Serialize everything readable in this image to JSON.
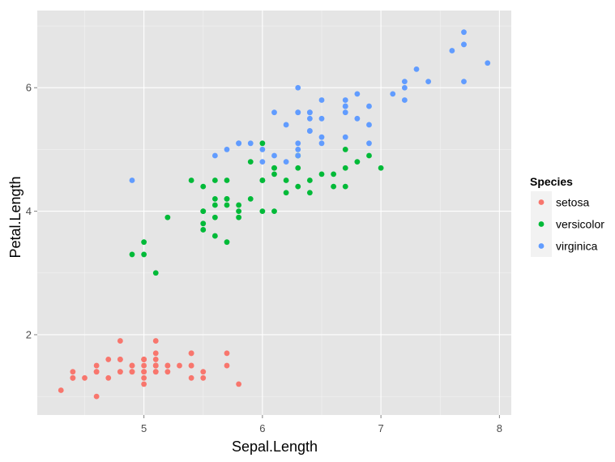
{
  "chart_data": {
    "type": "scatter",
    "xlabel": "Sepal.Length",
    "ylabel": "Petal.Length",
    "xlim": [
      4.1,
      8.1
    ],
    "ylim": [
      0.7,
      7.25
    ],
    "x_ticks": [
      5,
      6,
      7,
      8
    ],
    "x_tick_labels": [
      "5",
      "6",
      "7",
      "8"
    ],
    "y_ticks": [
      2,
      4,
      6
    ],
    "y_tick_labels": [
      "2",
      "4",
      "6"
    ],
    "grid": true,
    "background": "#e5e5e5",
    "legend": {
      "title": "Species",
      "position": "right"
    },
    "series": [
      {
        "name": "setosa",
        "color": "#f8766d",
        "points": [
          [
            5.1,
            1.4
          ],
          [
            4.9,
            1.4
          ],
          [
            4.7,
            1.3
          ],
          [
            4.6,
            1.5
          ],
          [
            5.0,
            1.4
          ],
          [
            5.4,
            1.7
          ],
          [
            4.6,
            1.4
          ],
          [
            5.0,
            1.5
          ],
          [
            4.4,
            1.4
          ],
          [
            4.9,
            1.5
          ],
          [
            5.4,
            1.5
          ],
          [
            4.8,
            1.6
          ],
          [
            4.8,
            1.4
          ],
          [
            4.3,
            1.1
          ],
          [
            5.8,
            1.2
          ],
          [
            5.7,
            1.5
          ],
          [
            5.4,
            1.3
          ],
          [
            5.1,
            1.4
          ],
          [
            5.7,
            1.7
          ],
          [
            5.1,
            1.5
          ],
          [
            5.4,
            1.7
          ],
          [
            5.1,
            1.5
          ],
          [
            4.6,
            1.0
          ],
          [
            5.1,
            1.7
          ],
          [
            4.8,
            1.9
          ],
          [
            5.0,
            1.6
          ],
          [
            5.0,
            1.6
          ],
          [
            5.2,
            1.5
          ],
          [
            5.2,
            1.4
          ],
          [
            4.7,
            1.6
          ],
          [
            4.8,
            1.6
          ],
          [
            5.4,
            1.5
          ],
          [
            5.2,
            1.5
          ],
          [
            5.5,
            1.4
          ],
          [
            4.9,
            1.5
          ],
          [
            5.0,
            1.2
          ],
          [
            5.5,
            1.3
          ],
          [
            4.9,
            1.4
          ],
          [
            4.4,
            1.3
          ],
          [
            5.1,
            1.5
          ],
          [
            5.0,
            1.3
          ],
          [
            4.5,
            1.3
          ],
          [
            4.4,
            1.3
          ],
          [
            5.0,
            1.6
          ],
          [
            5.1,
            1.9
          ],
          [
            4.8,
            1.4
          ],
          [
            5.1,
            1.6
          ],
          [
            4.6,
            1.4
          ],
          [
            5.3,
            1.5
          ],
          [
            5.0,
            1.4
          ]
        ]
      },
      {
        "name": "versicolor",
        "color": "#00ba38",
        "points": [
          [
            7.0,
            4.7
          ],
          [
            6.4,
            4.5
          ],
          [
            6.9,
            4.9
          ],
          [
            5.5,
            4.0
          ],
          [
            6.5,
            4.6
          ],
          [
            5.7,
            4.5
          ],
          [
            6.3,
            4.7
          ],
          [
            4.9,
            3.3
          ],
          [
            6.6,
            4.6
          ],
          [
            5.2,
            3.9
          ],
          [
            5.0,
            3.5
          ],
          [
            5.9,
            4.2
          ],
          [
            6.0,
            4.0
          ],
          [
            6.1,
            4.7
          ],
          [
            5.6,
            3.6
          ],
          [
            6.7,
            4.4
          ],
          [
            5.6,
            4.5
          ],
          [
            5.8,
            4.1
          ],
          [
            6.2,
            4.5
          ],
          [
            5.6,
            3.9
          ],
          [
            5.9,
            4.8
          ],
          [
            6.1,
            4.0
          ],
          [
            6.3,
            4.9
          ],
          [
            6.1,
            4.7
          ],
          [
            6.4,
            4.3
          ],
          [
            6.6,
            4.4
          ],
          [
            6.8,
            4.8
          ],
          [
            6.7,
            5.0
          ],
          [
            6.0,
            4.5
          ],
          [
            5.7,
            3.5
          ],
          [
            5.5,
            3.8
          ],
          [
            5.5,
            3.7
          ],
          [
            5.8,
            3.9
          ],
          [
            6.0,
            5.1
          ],
          [
            5.4,
            4.5
          ],
          [
            6.0,
            4.5
          ],
          [
            6.7,
            4.7
          ],
          [
            6.3,
            4.4
          ],
          [
            5.6,
            4.1
          ],
          [
            5.5,
            4.0
          ],
          [
            5.5,
            4.4
          ],
          [
            6.1,
            4.6
          ],
          [
            5.8,
            4.0
          ],
          [
            5.0,
            3.3
          ],
          [
            5.6,
            4.2
          ],
          [
            5.7,
            4.2
          ],
          [
            5.7,
            4.2
          ],
          [
            6.2,
            4.3
          ],
          [
            5.1,
            3.0
          ],
          [
            5.7,
            4.1
          ]
        ]
      },
      {
        "name": "virginica",
        "color": "#619cff",
        "points": [
          [
            6.3,
            6.0
          ],
          [
            5.8,
            5.1
          ],
          [
            7.1,
            5.9
          ],
          [
            6.3,
            5.6
          ],
          [
            6.5,
            5.8
          ],
          [
            7.6,
            6.6
          ],
          [
            4.9,
            4.5
          ],
          [
            7.3,
            6.3
          ],
          [
            6.7,
            5.8
          ],
          [
            7.2,
            6.1
          ],
          [
            6.5,
            5.1
          ],
          [
            6.4,
            5.3
          ],
          [
            6.8,
            5.5
          ],
          [
            5.7,
            5.0
          ],
          [
            5.8,
            5.1
          ],
          [
            6.4,
            5.3
          ],
          [
            6.5,
            5.5
          ],
          [
            7.7,
            6.7
          ],
          [
            7.7,
            6.9
          ],
          [
            6.0,
            5.0
          ],
          [
            6.9,
            5.7
          ],
          [
            5.6,
            4.9
          ],
          [
            7.7,
            6.7
          ],
          [
            6.3,
            4.9
          ],
          [
            6.7,
            5.7
          ],
          [
            7.2,
            6.0
          ],
          [
            6.2,
            4.8
          ],
          [
            6.1,
            4.9
          ],
          [
            6.4,
            5.6
          ],
          [
            7.2,
            5.8
          ],
          [
            7.4,
            6.1
          ],
          [
            7.9,
            6.4
          ],
          [
            6.4,
            5.6
          ],
          [
            6.3,
            5.1
          ],
          [
            6.1,
            5.6
          ],
          [
            7.7,
            6.1
          ],
          [
            6.3,
            5.6
          ],
          [
            6.4,
            5.5
          ],
          [
            6.0,
            4.8
          ],
          [
            6.9,
            5.4
          ],
          [
            6.7,
            5.6
          ],
          [
            6.9,
            5.1
          ],
          [
            5.8,
            5.1
          ],
          [
            6.8,
            5.9
          ],
          [
            6.7,
            5.7
          ],
          [
            6.7,
            5.2
          ],
          [
            6.3,
            5.0
          ],
          [
            6.5,
            5.2
          ],
          [
            6.2,
            5.4
          ],
          [
            5.9,
            5.1
          ]
        ]
      }
    ]
  }
}
